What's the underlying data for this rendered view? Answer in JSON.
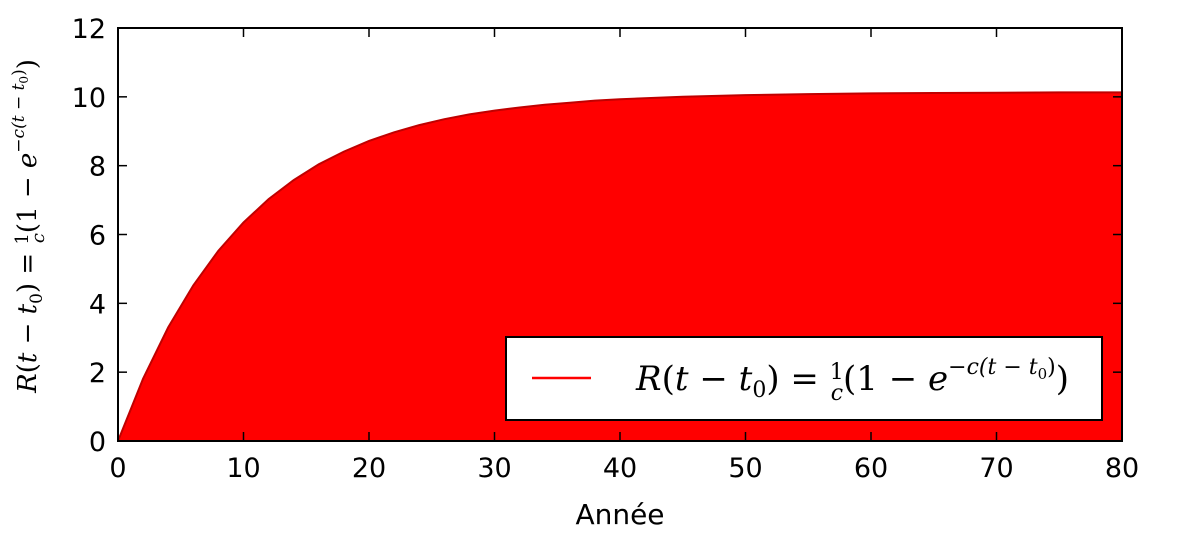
{
  "chart_data": {
    "type": "area",
    "xlabel": "Année",
    "ylabel": "R(t − t0) = 1/c (1 − e^(−c(t − t0)))",
    "legend": [
      "R(t − t0) = 1/c (1 − e^(−c(t − t0)))"
    ],
    "legend_position": "lower-right",
    "xlim": [
      0,
      80
    ],
    "ylim": [
      0,
      12
    ],
    "xticks": [
      0,
      10,
      20,
      30,
      40,
      50,
      60,
      70,
      80
    ],
    "yticks": [
      0,
      2,
      4,
      6,
      8,
      10,
      12
    ],
    "grid": false,
    "series": [
      {
        "name": "R(t − t0) = 1/c (1 − e^(−c(t − t0)))",
        "x": [
          0,
          2,
          4,
          6,
          8,
          10,
          12,
          14,
          16,
          18,
          20,
          22,
          24,
          26,
          28,
          30,
          32,
          34,
          36,
          38,
          40,
          45,
          50,
          55,
          60,
          65,
          70,
          75,
          80
        ],
        "y": [
          0,
          1.81,
          3.3,
          4.52,
          5.53,
          6.35,
          7.03,
          7.58,
          8.04,
          8.41,
          8.72,
          8.97,
          9.18,
          9.35,
          9.49,
          9.6,
          9.69,
          9.77,
          9.83,
          9.89,
          9.93,
          10.0,
          10.05,
          10.08,
          10.1,
          10.11,
          10.12,
          10.13,
          10.13
        ]
      }
    ],
    "fill_color": "#ff0000",
    "line_color": "#c00000"
  }
}
